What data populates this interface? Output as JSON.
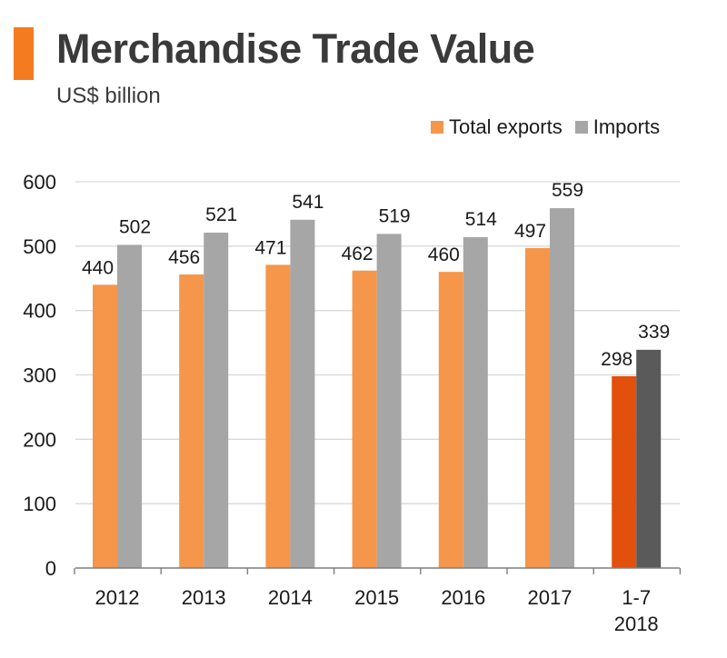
{
  "header": {
    "title": "Merchandise Trade Value",
    "subtitle": "US$ billion"
  },
  "colors": {
    "accent": "#f47b20",
    "exports": "#f5964a",
    "imports": "#a6a6a6",
    "exports_highlight": "#e2500d",
    "imports_highlight": "#5a5a5a",
    "gridline": "#d9d9d9",
    "axis": "#7f7f7f"
  },
  "chart_data": {
    "type": "bar",
    "title": "Merchandise Trade Value",
    "ylabel": "US$ billion",
    "xlabel": "",
    "ylim": [
      0,
      600
    ],
    "yticks": [
      0,
      100,
      200,
      300,
      400,
      500,
      600
    ],
    "grid": true,
    "legend_position": "top-right",
    "categories": [
      "2012",
      "2013",
      "2014",
      "2015",
      "2016",
      "2017",
      "1-7 2018"
    ],
    "category_lines": [
      [
        "2012"
      ],
      [
        "2013"
      ],
      [
        "2014"
      ],
      [
        "2015"
      ],
      [
        "2016"
      ],
      [
        "2017"
      ],
      [
        "1-7",
        "2018"
      ]
    ],
    "highlight_index": 6,
    "series": [
      {
        "name": "Total exports",
        "values": [
          440,
          456,
          471,
          462,
          460,
          497,
          298
        ]
      },
      {
        "name": "Imports",
        "values": [
          502,
          521,
          541,
          519,
          514,
          559,
          339
        ]
      }
    ]
  }
}
